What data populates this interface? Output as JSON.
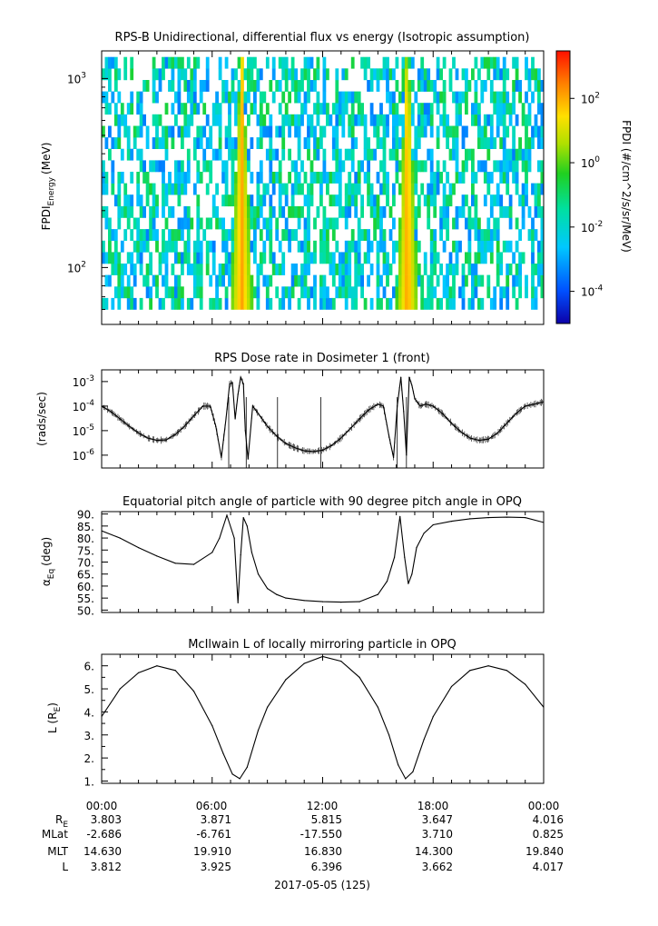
{
  "chart_data": [
    {
      "type": "heatmap",
      "title": "RPS-B  Unidirectional, differential flux vs energy (Isotropic assumption)",
      "ylabel": "FPDI",
      "ylabel_sub": "Energy",
      "ylabel_unit": "(MeV)",
      "yscale": "log",
      "ylim": [
        50,
        1400
      ],
      "yticks": [
        {
          "value": 100,
          "base": "10",
          "exp": "2"
        },
        {
          "value": 1000,
          "base": "10",
          "exp": "3"
        }
      ],
      "xlim": [
        0,
        24
      ],
      "zscale": "log",
      "zlim": [
        1e-05,
        3000
      ],
      "colorbar_label": "FPDI (#/cm^2/s/sr/MeV)",
      "colorbar_ticks": [
        {
          "value": 100,
          "base": "10",
          "exp": "2"
        },
        {
          "value": 1,
          "base": "10",
          "exp": "0"
        },
        {
          "value": 0.01,
          "base": "10",
          "exp": "-2"
        },
        {
          "value": 0.0001,
          "base": "10",
          "exp": "-4"
        }
      ],
      "flux_peaks_hours": [
        7.6,
        16.6
      ],
      "background_flux": 0.01
    },
    {
      "type": "line",
      "title": "RPS  Dose rate in Dosimeter 1 (front)",
      "ylabel": "(rads/sec)",
      "yscale": "log",
      "ylim": [
        3e-07,
        0.003
      ],
      "yticks": [
        {
          "value": 0.001,
          "base": "10",
          "exp": "-3"
        },
        {
          "value": 0.0001,
          "base": "10",
          "exp": "-4"
        },
        {
          "value": 1e-05,
          "base": "10",
          "exp": "-5"
        },
        {
          "value": 1e-06,
          "base": "10",
          "exp": "-6"
        }
      ],
      "xlim": [
        0,
        24
      ],
      "x": [
        0,
        0.5,
        1,
        1.5,
        2,
        2.5,
        3,
        3.5,
        4,
        4.5,
        5,
        5.5,
        5.9,
        6.2,
        6.5,
        6.75,
        6.95,
        7.1,
        7.25,
        7.4,
        7.55,
        7.7,
        7.8,
        7.95,
        8.2,
        8.5,
        9,
        9.5,
        10,
        10.5,
        11,
        11.5,
        12,
        12.5,
        13,
        13.5,
        14,
        14.5,
        15,
        15.3,
        15.6,
        15.85,
        16.05,
        16.25,
        16.4,
        16.55,
        16.7,
        16.85,
        17,
        17.3,
        17.6,
        18,
        18.5,
        19,
        19.5,
        20,
        20.5,
        21,
        21.5,
        22,
        22.5,
        23,
        23.5,
        24
      ],
      "values": [
        0.0001,
        6e-05,
        3e-05,
        1.5e-05,
        8e-06,
        5e-06,
        4e-06,
        4.2e-06,
        7e-06,
        1.5e-05,
        4e-05,
        0.0001,
        0.0001,
        1.5e-05,
        8e-07,
        3e-05,
        0.0008,
        0.0009,
        3e-05,
        0.0003,
        0.0015,
        0.0008,
        1e-05,
        7e-07,
        0.0001,
        5e-05,
        1.5e-05,
        6e-06,
        3e-06,
        2e-06,
        1.5e-06,
        1.4e-06,
        1.6e-06,
        2.5e-06,
        5e-06,
        1.2e-05,
        3e-05,
        7e-05,
        0.00012,
        0.0001,
        6e-06,
        8e-07,
        0.0001,
        0.0015,
        6e-05,
        1e-06,
        0.0015,
        0.0007,
        0.0002,
        0.0001,
        0.00012,
        0.0001,
        5e-05,
        2e-05,
        9e-06,
        5e-06,
        4e-06,
        4.5e-06,
        8e-06,
        2e-05,
        5e-05,
        0.0001,
        0.00012,
        0.00015
      ]
    },
    {
      "type": "line",
      "title": "Equatorial pitch angle of particle with 90 degree pitch angle in OPQ",
      "ylabel": "α",
      "ylabel_sub": "Eq",
      "ylabel_unit": "(deg)",
      "ylim": [
        49,
        91
      ],
      "yticks": [
        50,
        55,
        60,
        65,
        70,
        75,
        80,
        85,
        90
      ],
      "ytick_labels": [
        "50.",
        "55.",
        "60.",
        "65.",
        "70.",
        "75.",
        "80.",
        "85.",
        "90."
      ],
      "xlim": [
        0,
        24
      ],
      "x": [
        0,
        1,
        2,
        3,
        4,
        5,
        6,
        6.4,
        6.8,
        7.2,
        7.4,
        7.55,
        7.7,
        7.9,
        8.15,
        8.5,
        9,
        9.5,
        10,
        11,
        12,
        13,
        14,
        15,
        15.5,
        15.9,
        16.2,
        16.45,
        16.65,
        16.85,
        17.1,
        17.5,
        18,
        19,
        20,
        21,
        22,
        23,
        24
      ],
      "values": [
        83,
        80,
        76,
        72.5,
        69.5,
        69,
        74,
        80,
        89.5,
        80,
        53,
        73,
        88.5,
        85,
        74,
        65,
        59,
        56.5,
        55,
        54,
        53.5,
        53.3,
        53.5,
        56.5,
        62,
        72,
        89,
        72,
        61,
        65,
        76,
        82,
        85.5,
        87,
        88,
        88.5,
        88.7,
        88.5,
        86.5
      ]
    },
    {
      "type": "line",
      "title": "McIlwain L of locally mirroring particle in OPQ",
      "ylabel": "L (R",
      "ylabel_sub": "E",
      "ylabel_unit": ")",
      "ylim": [
        0.9,
        6.5
      ],
      "yticks": [
        1,
        1.5,
        2,
        2.5,
        3,
        3.5,
        4,
        4.5,
        5,
        5.5,
        6
      ],
      "ytick_labels": [
        "1.",
        "",
        "2.",
        "",
        "3.",
        "",
        "4.",
        "",
        "5.",
        "",
        "6."
      ],
      "xlim": [
        0,
        24
      ],
      "x": [
        0,
        1,
        2,
        3,
        4,
        5,
        6,
        6.6,
        7.1,
        7.5,
        7.9,
        8.5,
        9,
        10,
        11,
        12,
        13,
        14,
        15,
        15.6,
        16.1,
        16.5,
        16.9,
        17.5,
        18,
        19,
        20,
        21,
        22,
        23,
        24
      ],
      "values": [
        3.8,
        5,
        5.7,
        6,
        5.8,
        4.9,
        3.4,
        2.2,
        1.3,
        1.1,
        1.6,
        3.2,
        4.2,
        5.4,
        6.1,
        6.4,
        6.2,
        5.5,
        4.2,
        3,
        1.7,
        1.1,
        1.4,
        2.8,
        3.8,
        5.1,
        5.8,
        6,
        5.8,
        5.2,
        4.2
      ]
    }
  ],
  "xaxis": {
    "ticks": [
      {
        "label": "00:00",
        "RE": "3.803",
        "MLat": "-2.686",
        "MLT": "14.630",
        "L": "3.812"
      },
      {
        "label": "06:00",
        "RE": "3.871",
        "MLat": "-6.761",
        "MLT": "19.910",
        "L": "3.925"
      },
      {
        "label": "12:00",
        "RE": "5.815",
        "MLat": "-17.550",
        "MLT": "16.830",
        "L": "6.396"
      },
      {
        "label": "18:00",
        "RE": "3.647",
        "MLat": "3.710",
        "MLT": "14.300",
        "L": "3.662"
      },
      {
        "label": "00:00",
        "RE": "4.016",
        "MLat": "0.825",
        "MLT": "19.840",
        "L": "4.017"
      }
    ],
    "row_labels": {
      "RE": "R",
      "RE_sub": "E",
      "MLat": "MLat",
      "MLT": "MLT",
      "L": "L"
    },
    "date_label": "2017-05-05 (125)"
  }
}
